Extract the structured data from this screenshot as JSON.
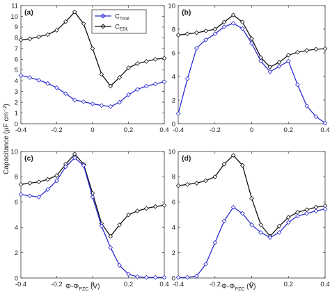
{
  "ylabel": "Capacitance (µF cm⁻²)",
  "xlabel": "Φ-Φ",
  "xlabel_sub": "PZC",
  "xlabel_unit": " (V)",
  "legend": {
    "total_main": "C",
    "total_sub": "Total",
    "edl_main": "C",
    "edl_sub": "EDL"
  },
  "colors": {
    "total": "#2b2bd0",
    "edl": "#111111"
  },
  "chart_data": [
    {
      "type": "line",
      "panel": "(a)",
      "xlim": [
        -0.4,
        0.4
      ],
      "ylim": [
        0,
        11
      ],
      "xticks": [
        "-0.4",
        "-0.2",
        "0",
        "0.2",
        "0.4"
      ],
      "yticks": [
        "0",
        "1",
        "2",
        "3",
        "4",
        "5",
        "6",
        "7",
        "8",
        "9",
        "10",
        "11"
      ],
      "x": [
        -0.4,
        -0.35,
        -0.3,
        -0.25,
        -0.2,
        -0.15,
        -0.1,
        -0.05,
        0,
        0.05,
        0.1,
        0.15,
        0.2,
        0.25,
        0.3,
        0.35,
        0.4
      ],
      "series": [
        {
          "name": "C_EDL",
          "values": [
            7.8,
            7.9,
            8.1,
            8.3,
            8.7,
            9.5,
            10.4,
            9.3,
            7.0,
            4.6,
            3.5,
            4.3,
            5.2,
            5.6,
            5.8,
            6.0,
            6.1
          ]
        },
        {
          "name": "C_Total",
          "values": [
            4.5,
            4.3,
            4.05,
            3.75,
            3.35,
            2.8,
            2.2,
            2.05,
            1.85,
            1.7,
            1.6,
            2.0,
            2.7,
            3.2,
            3.5,
            3.7,
            3.9
          ]
        }
      ]
    },
    {
      "type": "line",
      "panel": "(b)",
      "xlim": [
        -0.4,
        0.4
      ],
      "ylim": [
        0,
        10
      ],
      "xticks": [
        "-0.4",
        "-0.2",
        "0",
        "0.2",
        "0.4"
      ],
      "yticks": [
        "0",
        "2",
        "4",
        "6",
        "8",
        "10"
      ],
      "x": [
        -0.4,
        -0.35,
        -0.3,
        -0.25,
        -0.2,
        -0.15,
        -0.1,
        -0.05,
        0,
        0.05,
        0.1,
        0.15,
        0.2,
        0.25,
        0.3,
        0.35,
        0.4
      ],
      "series": [
        {
          "name": "C_EDL",
          "values": [
            7.5,
            7.6,
            7.7,
            7.85,
            8.0,
            8.6,
            9.2,
            8.6,
            7.2,
            5.6,
            4.8,
            5.2,
            5.8,
            6.05,
            6.2,
            6.3,
            6.35
          ]
        },
        {
          "name": "C_Total",
          "values": [
            0.85,
            3.8,
            6.4,
            7.1,
            7.6,
            8.2,
            8.5,
            8.05,
            6.8,
            5.3,
            4.4,
            4.85,
            5.3,
            3.3,
            1.5,
            0.6,
            0.05
          ]
        }
      ]
    },
    {
      "type": "line",
      "panel": "(c)",
      "xlim": [
        -0.4,
        0.4
      ],
      "ylim": [
        0,
        10
      ],
      "xticks": [
        "-0.4",
        "-0.2",
        "0",
        "0.2",
        "0.4"
      ],
      "yticks": [
        "0",
        "2",
        "4",
        "6",
        "8",
        "10"
      ],
      "x": [
        -0.4,
        -0.35,
        -0.3,
        -0.25,
        -0.2,
        -0.15,
        -0.1,
        -0.05,
        0,
        0.05,
        0.1,
        0.15,
        0.2,
        0.25,
        0.3,
        0.35,
        0.4
      ],
      "series": [
        {
          "name": "C_EDL",
          "values": [
            7.4,
            7.5,
            7.6,
            7.8,
            8.1,
            9.0,
            9.8,
            9.0,
            6.7,
            4.3,
            3.3,
            4.2,
            5.0,
            5.3,
            5.5,
            5.65,
            5.75
          ]
        },
        {
          "name": "C_Total",
          "values": [
            6.6,
            6.5,
            6.4,
            7.0,
            7.7,
            8.8,
            9.5,
            8.9,
            6.4,
            4.1,
            2.4,
            1.0,
            0.3,
            0.1,
            0.05,
            0.05,
            0.05
          ]
        }
      ]
    },
    {
      "type": "line",
      "panel": "(d)",
      "xlim": [
        -0.4,
        0.4
      ],
      "ylim": [
        0,
        10
      ],
      "xticks": [
        "-0.4",
        "-0.2",
        "0",
        "0.2",
        "0.4"
      ],
      "yticks": [
        "0",
        "2",
        "4",
        "6",
        "8",
        "10"
      ],
      "x": [
        -0.4,
        -0.35,
        -0.3,
        -0.25,
        -0.2,
        -0.15,
        -0.1,
        -0.05,
        0,
        0.05,
        0.1,
        0.15,
        0.2,
        0.25,
        0.3,
        0.35,
        0.4
      ],
      "series": [
        {
          "name": "C_EDL",
          "values": [
            7.3,
            7.4,
            7.5,
            7.7,
            8.0,
            9.0,
            9.7,
            8.9,
            6.3,
            4.2,
            3.3,
            4.1,
            4.8,
            5.2,
            5.4,
            5.6,
            5.7
          ]
        },
        {
          "name": "C_Total",
          "values": [
            0.05,
            0.05,
            0.15,
            1.1,
            2.8,
            4.5,
            5.6,
            5.1,
            4.2,
            3.6,
            3.2,
            3.6,
            4.4,
            4.9,
            5.1,
            5.3,
            5.45
          ]
        }
      ]
    }
  ]
}
